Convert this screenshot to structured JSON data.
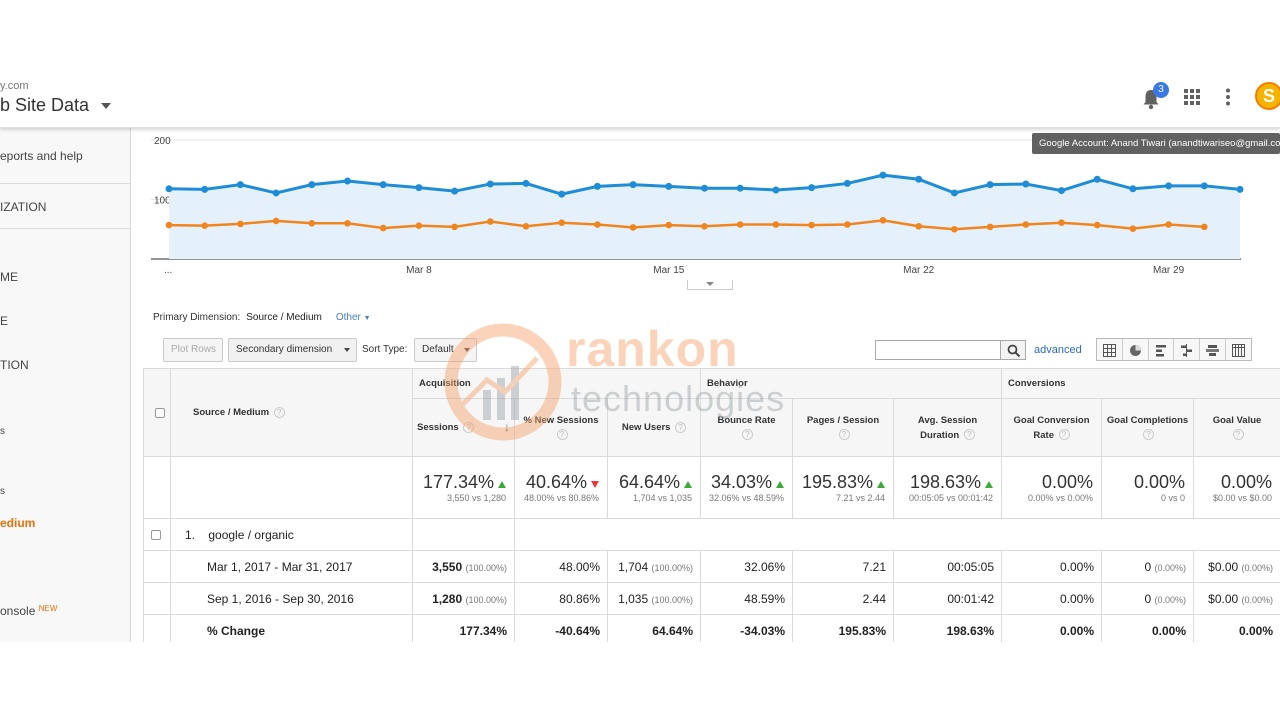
{
  "header": {
    "account_domain": "y.com",
    "property_title": "b Site Data",
    "notification_count": "3",
    "avatar_letter": "S",
    "account_tooltip": "Google Account: Anand Tiwari (anandtiwariseo@gmail.com)"
  },
  "sidebar": {
    "items": [
      {
        "label": "eports and help"
      },
      {
        "label": "IZATION"
      },
      {
        "label": "ME"
      },
      {
        "label": "E"
      },
      {
        "label": "TION"
      },
      {
        "label": "s"
      },
      {
        "label": "s"
      },
      {
        "label": "edium"
      },
      {
        "label": "onsole"
      }
    ],
    "new_tag": "NEW"
  },
  "chart_data": {
    "type": "line",
    "x_tick_labels": [
      "...",
      "Mar 8",
      "Mar 15",
      "Mar 22",
      "Mar 29"
    ],
    "y_tick_labels": [
      "200",
      "100"
    ],
    "ylim": [
      0,
      200
    ],
    "grid": true,
    "series": [
      {
        "color": "#1f8dd6",
        "values": [
          118,
          117,
          125,
          111,
          125,
          131,
          125,
          120,
          114,
          126,
          127,
          109,
          122,
          125,
          122,
          119,
          119,
          116,
          120,
          127,
          141,
          134,
          111,
          125,
          126,
          115,
          134,
          118,
          123,
          123,
          117
        ]
      },
      {
        "color": "#f0851f",
        "values": [
          57,
          56,
          59,
          64,
          60,
          60,
          52,
          56,
          54,
          63,
          55,
          61,
          58,
          53,
          57,
          55,
          58,
          58,
          57,
          58,
          65,
          55,
          50,
          54,
          58,
          61,
          57,
          51,
          58,
          54
        ]
      }
    ]
  },
  "primary_dimension": {
    "label": "Primary Dimension:",
    "value": "Source / Medium",
    "other": "Other"
  },
  "toolbar": {
    "plot_rows": "Plot Rows",
    "secondary_dimension": "Secondary dimension",
    "sort_type_label": "Sort Type:",
    "sort_type_value": "Default",
    "advanced": "advanced"
  },
  "watermark": {
    "brand": "rankon",
    "sub": "technologies"
  },
  "table": {
    "dimension_header": "Source / Medium",
    "groups": {
      "acquisition": "Acquisition",
      "behavior": "Behavior",
      "conversions": "Conversions"
    },
    "columns": {
      "sessions": "Sessions",
      "new_sessions": "% New Sessions",
      "new_users": "New Users",
      "bounce_rate": "Bounce Rate",
      "pages_session": "Pages / Session",
      "avg_session": "Avg. Session Duration",
      "goal_conv_rate": "Goal Conversion Rate",
      "goal_completions": "Goal Completions",
      "goal_value": "Goal Value"
    },
    "totals": {
      "sessions": {
        "big": "177.34%",
        "sub": "3,550 vs 1,280"
      },
      "new_sessions": {
        "big": "40.64%",
        "sub": "48.00% vs 80.86%"
      },
      "new_users": {
        "big": "64.64%",
        "sub": "1,704 vs 1,035"
      },
      "bounce_rate": {
        "big": "34.03%",
        "sub": "32.06% vs 48.59%"
      },
      "pages_session": {
        "big": "195.83%",
        "sub": "7.21 vs 2.44"
      },
      "avg_session": {
        "big": "198.63%",
        "sub": "00:05:05 vs 00:01:42"
      },
      "goal_conv_rate": {
        "big": "0.00%",
        "sub": "0.00% vs 0.00%"
      },
      "goal_completions": {
        "big": "0.00%",
        "sub": "0 vs 0"
      },
      "goal_value": {
        "big": "0.00%",
        "sub": "$0.00 vs $0.00"
      }
    },
    "group_row": {
      "index": "1.",
      "label": "google / organic"
    },
    "rows": [
      {
        "label": "Mar 1, 2017 - Mar 31, 2017",
        "sessions": "3,550",
        "sessions_pct": "(100.00%)",
        "new_sessions": "48.00%",
        "new_users": "1,704",
        "new_users_pct": "(100.00%)",
        "bounce_rate": "32.06%",
        "pages_session": "7.21",
        "avg_session": "00:05:05",
        "goal_conv_rate": "0.00%",
        "goal_completions": "0",
        "goal_completions_pct": "(0.00%)",
        "goal_value": "$0.00",
        "goal_value_pct": "(0.00%)"
      },
      {
        "label": "Sep 1, 2016 - Sep 30, 2016",
        "sessions": "1,280",
        "sessions_pct": "(100.00%)",
        "new_sessions": "80.86%",
        "new_users": "1,035",
        "new_users_pct": "(100.00%)",
        "bounce_rate": "48.59%",
        "pages_session": "2.44",
        "avg_session": "00:01:42",
        "goal_conv_rate": "0.00%",
        "goal_completions": "0",
        "goal_completions_pct": "(0.00%)",
        "goal_value": "$0.00",
        "goal_value_pct": "(0.00%)"
      }
    ],
    "change_row": {
      "label": "% Change",
      "sessions": "177.34%",
      "new_sessions": "-40.64%",
      "new_users": "64.64%",
      "bounce_rate": "-34.03%",
      "pages_session": "195.83%",
      "avg_session": "198.63%",
      "goal_conv_rate": "0.00%",
      "goal_completions": "0.00%",
      "goal_value": "0.00%"
    }
  }
}
